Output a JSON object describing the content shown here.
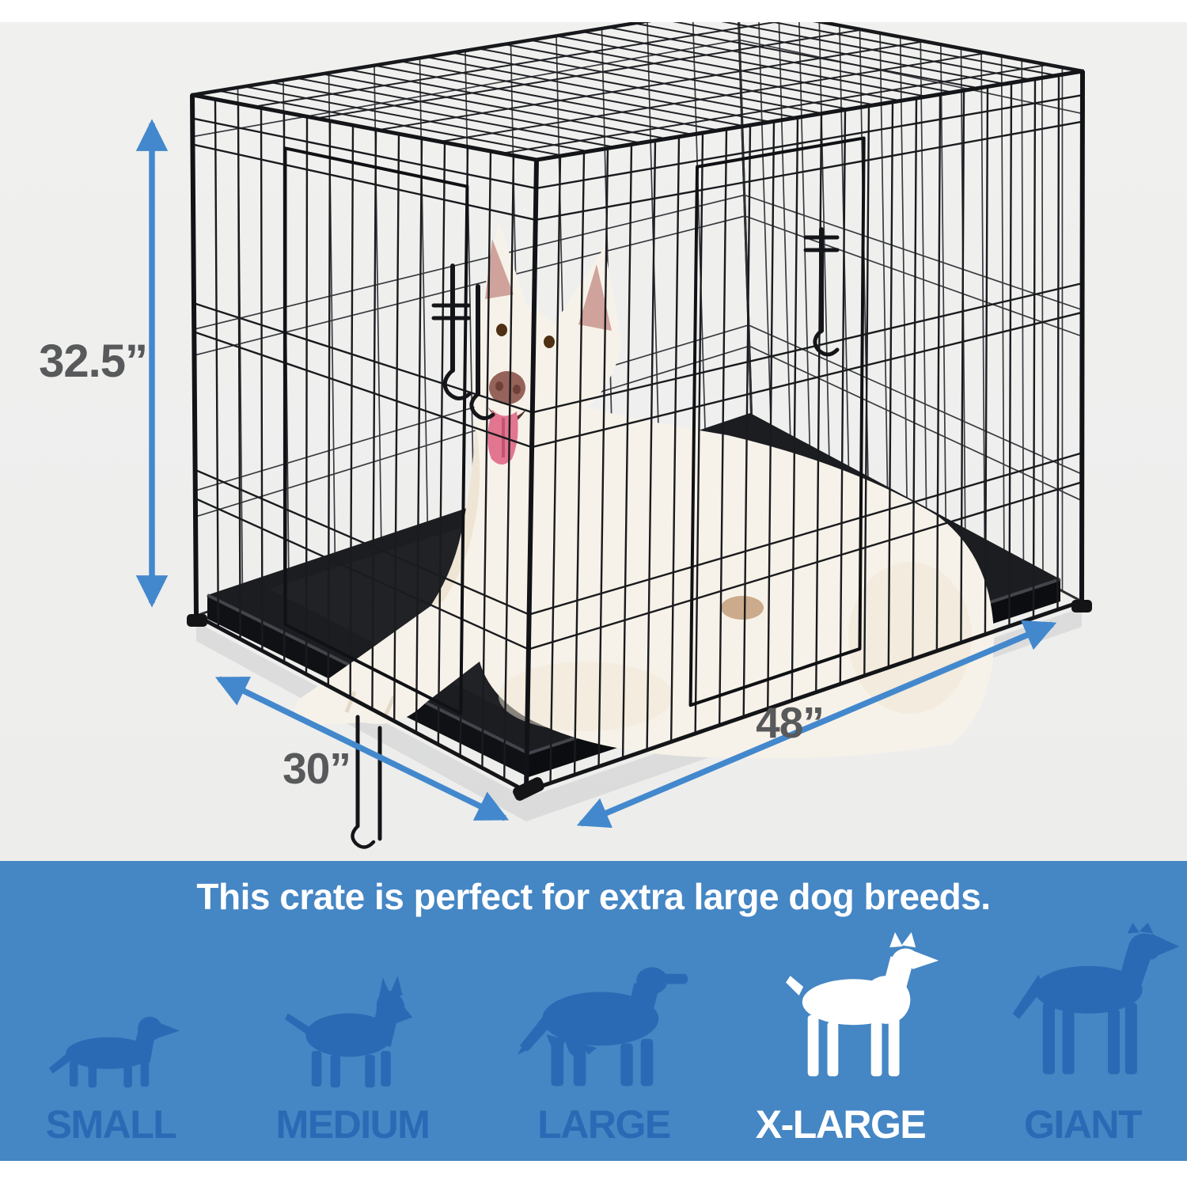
{
  "photo": {
    "dimension_height_label": "32.5”",
    "dimension_width_label": "30”",
    "dimension_depth_label": "48”",
    "subject": "white dog lying inside black wire double-door crate with black tray"
  },
  "banner": {
    "headline": "This crate is perfect for extra large dog breeds.",
    "sizes": [
      {
        "label": "SMALL",
        "highlighted": false
      },
      {
        "label": "MEDIUM",
        "highlighted": false
      },
      {
        "label": "LARGE",
        "highlighted": false
      },
      {
        "label": "X-LARGE",
        "highlighted": true
      },
      {
        "label": "GIANT",
        "highlighted": false
      }
    ]
  },
  "icons": {
    "small": "dachshund-silhouette",
    "medium": "bull-terrier-silhouette",
    "large": "setter-silhouette",
    "xlarge": "doberman-silhouette",
    "giant": "great-dane-silhouette"
  },
  "colors": {
    "photo_bg": "#f0f1ef",
    "banner_bg": "#4586c4",
    "silhouette_blue": "#2a6ab5",
    "arrow_blue": "#4388cd",
    "dimension_text": "#58595b",
    "wire_black": "#1a1b1e",
    "tray_black": "#1c1d21",
    "dog_cream": "#f7f2e9",
    "tongue_pink": "#e2758f",
    "highlight_white": "#ffffff"
  }
}
